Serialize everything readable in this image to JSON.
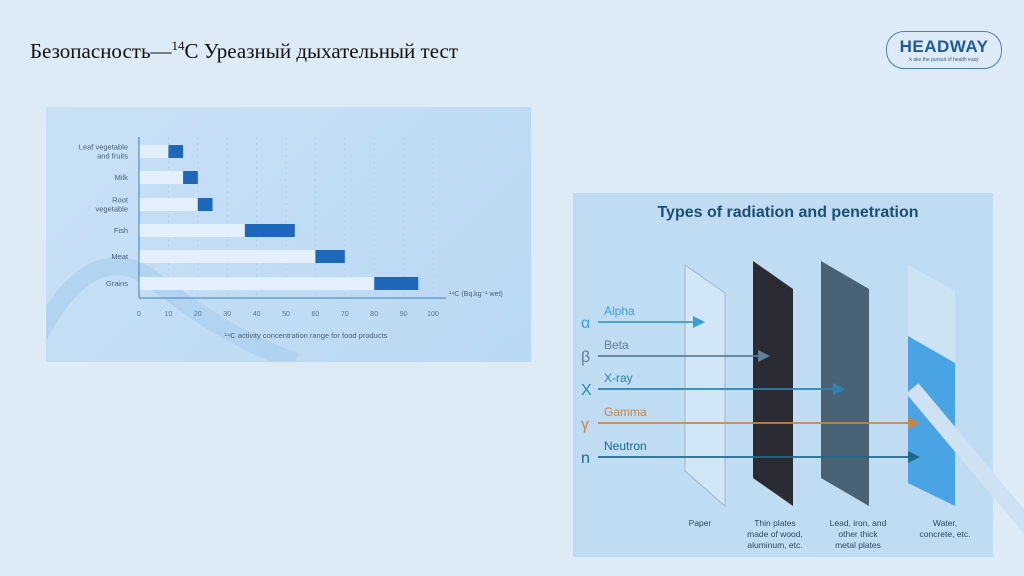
{
  "header": {
    "title_prefix": "Безопасность—",
    "title_sup": "14",
    "title_suffix": "C Уреазный дыхательный тест",
    "logo_name": "HEADWAY",
    "logo_tagline": "k ake the pursuit of health easy"
  },
  "chart_data": {
    "type": "bar",
    "subtype": "floating-range",
    "categories": [
      "Leaf vegetable and fruits",
      "Milk",
      "Root vegetable",
      "Fish",
      "Meat",
      "Grains"
    ],
    "ranges": [
      [
        10,
        15
      ],
      [
        15,
        20
      ],
      [
        20,
        25
      ],
      [
        36,
        53
      ],
      [
        60,
        70
      ],
      [
        80,
        95
      ]
    ],
    "xticks": [
      0,
      10,
      20,
      30,
      40,
      50,
      60,
      70,
      80,
      90,
      100
    ],
    "xlim": [
      0,
      100
    ],
    "xlabel": "¹⁴C (Bq.kg⁻¹ wet)",
    "title": "¹⁴C activity concentration range for food products",
    "color": "#1f67b8"
  },
  "radiation": {
    "title": "Types of radiation and penetration",
    "rays": [
      {
        "symbol": "α",
        "name": "Alpha",
        "color": "#3a9fd0"
      },
      {
        "symbol": "β",
        "name": "Beta",
        "color": "#5f7f96"
      },
      {
        "symbol": "X",
        "name": "X-ray",
        "color": "#2a86b0"
      },
      {
        "symbol": "γ",
        "name": "Gamma",
        "color": "#c9844a"
      },
      {
        "symbol": "n",
        "name": "Neutron",
        "color": "#1e6a8c"
      }
    ],
    "materials": [
      "Paper",
      "Thin plates made of wood, aluminum, etc.",
      "Lead, iron, and other thick metal plates",
      "Water, concrete, etc."
    ]
  }
}
